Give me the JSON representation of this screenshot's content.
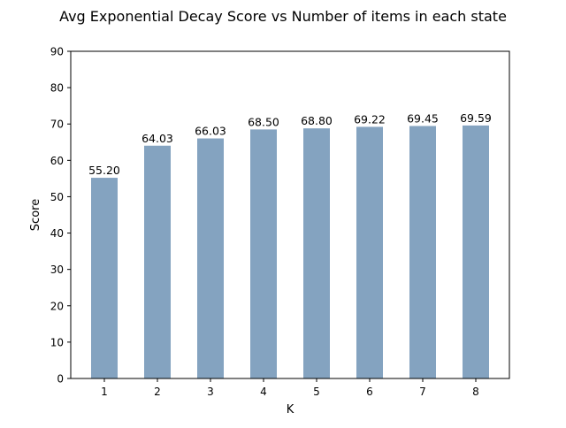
{
  "chart_data": {
    "type": "bar",
    "title": "Avg Exponential Decay Score vs Number of items in each state",
    "xlabel": "K",
    "ylabel": "Score",
    "categories": [
      "1",
      "2",
      "3",
      "4",
      "5",
      "6",
      "7",
      "8"
    ],
    "values": [
      55.2,
      64.03,
      66.03,
      68.5,
      68.8,
      69.22,
      69.45,
      69.59
    ],
    "data_labels": [
      "55.20",
      "64.03",
      "66.03",
      "68.50",
      "68.80",
      "69.22",
      "69.45",
      "69.59"
    ],
    "ylim": [
      0,
      90
    ],
    "yticks": [
      0,
      10,
      20,
      30,
      40,
      50,
      60,
      70,
      80,
      90
    ],
    "ytick_labels": [
      "0",
      "10",
      "20",
      "30",
      "40",
      "50",
      "60",
      "70",
      "80",
      "90"
    ],
    "bar_color": "#84a3c0",
    "grid": false,
    "legend": "none"
  }
}
